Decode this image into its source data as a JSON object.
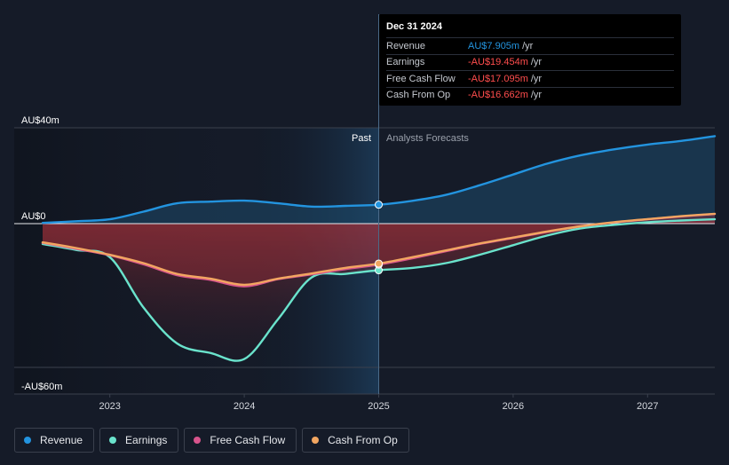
{
  "colors": {
    "background": "#151b28",
    "revenue": "#2394df",
    "earnings": "#6ae3cc",
    "free_cash_flow": "#d7548c",
    "cash_from_op": "#f2a661",
    "past_band": "#18324a"
  },
  "tooltip": {
    "date": "Dec 31 2024",
    "rows": [
      {
        "name": "Revenue",
        "value": "AU$7.905m",
        "unit": "/yr",
        "color": "#2394df"
      },
      {
        "name": "Earnings",
        "value": "-AU$19.454m",
        "unit": "/yr",
        "color": "#ff4d4d"
      },
      {
        "name": "Free Cash Flow",
        "value": "-AU$17.095m",
        "unit": "/yr",
        "color": "#ff4d4d"
      },
      {
        "name": "Cash From Op",
        "value": "-AU$16.662m",
        "unit": "/yr",
        "color": "#ff4d4d"
      }
    ]
  },
  "labels": {
    "past": "Past",
    "forecast": "Analysts Forecasts"
  },
  "legend": [
    {
      "label": "Revenue",
      "color": "#2394df"
    },
    {
      "label": "Earnings",
      "color": "#6ae3cc"
    },
    {
      "label": "Free Cash Flow",
      "color": "#d7548c"
    },
    {
      "label": "Cash From Op",
      "color": "#f2a661"
    }
  ],
  "chart_data": {
    "type": "line",
    "x_ticks": [
      2023,
      2024,
      2025,
      2026,
      2027
    ],
    "x_range": [
      2022.5,
      2027.5
    ],
    "y_range": [
      -60,
      40
    ],
    "y_ticks": [
      {
        "value": 40,
        "label": "AU$40m"
      },
      {
        "value": 0,
        "label": "AU$0"
      },
      {
        "value": -60,
        "label": "-AU$60m"
      }
    ],
    "past_end": 2025.0,
    "highlight_start": 2024.0,
    "series": [
      {
        "name": "Revenue",
        "points": [
          [
            2022.5,
            0.3
          ],
          [
            2022.75,
            1
          ],
          [
            2023.0,
            1.8
          ],
          [
            2023.25,
            5
          ],
          [
            2023.5,
            8.5
          ],
          [
            2023.75,
            9.2
          ],
          [
            2024.0,
            9.6
          ],
          [
            2024.25,
            8.5
          ],
          [
            2024.5,
            7.1
          ],
          [
            2024.75,
            7.4
          ],
          [
            2025.0,
            7.9
          ],
          [
            2025.25,
            9.5
          ],
          [
            2025.5,
            12
          ],
          [
            2025.75,
            16
          ],
          [
            2026.0,
            20.5
          ],
          [
            2026.25,
            25
          ],
          [
            2026.5,
            28.5
          ],
          [
            2026.75,
            31
          ],
          [
            2027.0,
            33
          ],
          [
            2027.25,
            34.5
          ],
          [
            2027.5,
            36.5
          ]
        ]
      },
      {
        "name": "Earnings",
        "points": [
          [
            2022.5,
            -8.5
          ],
          [
            2022.75,
            -11
          ],
          [
            2023.0,
            -14
          ],
          [
            2023.25,
            -35
          ],
          [
            2023.5,
            -50
          ],
          [
            2023.75,
            -54
          ],
          [
            2024.0,
            -56.5
          ],
          [
            2024.25,
            -40
          ],
          [
            2024.5,
            -22.5
          ],
          [
            2024.75,
            -21
          ],
          [
            2025.0,
            -19.45
          ],
          [
            2025.25,
            -18.5
          ],
          [
            2025.5,
            -16.5
          ],
          [
            2025.75,
            -13
          ],
          [
            2026.0,
            -9
          ],
          [
            2026.25,
            -5
          ],
          [
            2026.5,
            -2
          ],
          [
            2026.75,
            -0.5
          ],
          [
            2027.0,
            0.6
          ],
          [
            2027.25,
            1.3
          ],
          [
            2027.5,
            1.8
          ]
        ]
      },
      {
        "name": "Free Cash Flow",
        "points": [
          [
            2022.5,
            -8
          ],
          [
            2022.75,
            -10.5
          ],
          [
            2023.0,
            -13.2
          ],
          [
            2023.25,
            -17
          ],
          [
            2023.5,
            -21.5
          ],
          [
            2023.75,
            -23.5
          ],
          [
            2024.0,
            -26.2
          ],
          [
            2024.25,
            -23.2
          ],
          [
            2024.5,
            -21.2
          ],
          [
            2024.75,
            -19
          ],
          [
            2025.0,
            -17.1
          ],
          [
            2025.25,
            -14.5
          ],
          [
            2025.5,
            -11.5
          ],
          [
            2025.75,
            -8.5
          ],
          [
            2026.0,
            -6
          ],
          [
            2026.25,
            -3.5
          ],
          [
            2026.5,
            -1.2
          ],
          [
            2026.75,
            0.5
          ],
          [
            2027.0,
            1.8
          ],
          [
            2027.25,
            3
          ],
          [
            2027.5,
            4
          ]
        ]
      },
      {
        "name": "Cash From Op",
        "points": [
          [
            2022.5,
            -7.8
          ],
          [
            2022.75,
            -10.2
          ],
          [
            2023.0,
            -13
          ],
          [
            2023.25,
            -16.5
          ],
          [
            2023.5,
            -21
          ],
          [
            2023.75,
            -23
          ],
          [
            2024.0,
            -25.5
          ],
          [
            2024.25,
            -23
          ],
          [
            2024.5,
            -20.8
          ],
          [
            2024.75,
            -18.5
          ],
          [
            2025.0,
            -16.66
          ],
          [
            2025.25,
            -14
          ],
          [
            2025.5,
            -11.2
          ],
          [
            2025.75,
            -8.3
          ],
          [
            2026.0,
            -5.8
          ],
          [
            2026.25,
            -3.3
          ],
          [
            2026.5,
            -1.1
          ],
          [
            2026.75,
            0.6
          ],
          [
            2027.0,
            1.9
          ],
          [
            2027.25,
            3.1
          ],
          [
            2027.5,
            4.1
          ]
        ]
      }
    ]
  }
}
